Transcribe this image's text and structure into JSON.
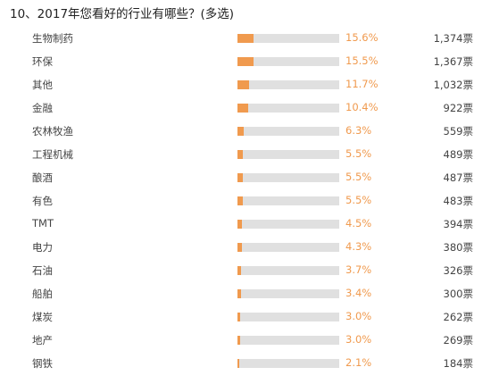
{
  "question": {
    "title": "10、2017年您看好的行业有哪些？(多选)"
  },
  "colors": {
    "bar_fill": "#f09a4e",
    "bar_track": "#e0e0e0",
    "percent_text": "#f09a4e"
  },
  "options": [
    {
      "label": "生物制药",
      "percent_text": "15.6%",
      "percent": 15.6,
      "votes": "1,374票"
    },
    {
      "label": "环保",
      "percent_text": "15.5%",
      "percent": 15.5,
      "votes": "1,367票"
    },
    {
      "label": "其他",
      "percent_text": "11.7%",
      "percent": 11.7,
      "votes": "1,032票"
    },
    {
      "label": "金融",
      "percent_text": "10.4%",
      "percent": 10.4,
      "votes": "922票"
    },
    {
      "label": "农林牧渔",
      "percent_text": "6.3%",
      "percent": 6.3,
      "votes": "559票"
    },
    {
      "label": "工程机械",
      "percent_text": "5.5%",
      "percent": 5.5,
      "votes": "489票"
    },
    {
      "label": "酿酒",
      "percent_text": "5.5%",
      "percent": 5.5,
      "votes": "487票"
    },
    {
      "label": "有色",
      "percent_text": "5.5%",
      "percent": 5.5,
      "votes": "483票"
    },
    {
      "label": "TMT",
      "percent_text": "4.5%",
      "percent": 4.5,
      "votes": "394票"
    },
    {
      "label": "电力",
      "percent_text": "4.3%",
      "percent": 4.3,
      "votes": "380票"
    },
    {
      "label": "石油",
      "percent_text": "3.7%",
      "percent": 3.7,
      "votes": "326票"
    },
    {
      "label": "船舶",
      "percent_text": "3.4%",
      "percent": 3.4,
      "votes": "300票"
    },
    {
      "label": "煤炭",
      "percent_text": "3.0%",
      "percent": 3.0,
      "votes": "262票"
    },
    {
      "label": "地产",
      "percent_text": "3.0%",
      "percent": 3.0,
      "votes": "269票"
    },
    {
      "label": "钢铁",
      "percent_text": "2.1%",
      "percent": 2.1,
      "votes": "184票"
    }
  ]
}
